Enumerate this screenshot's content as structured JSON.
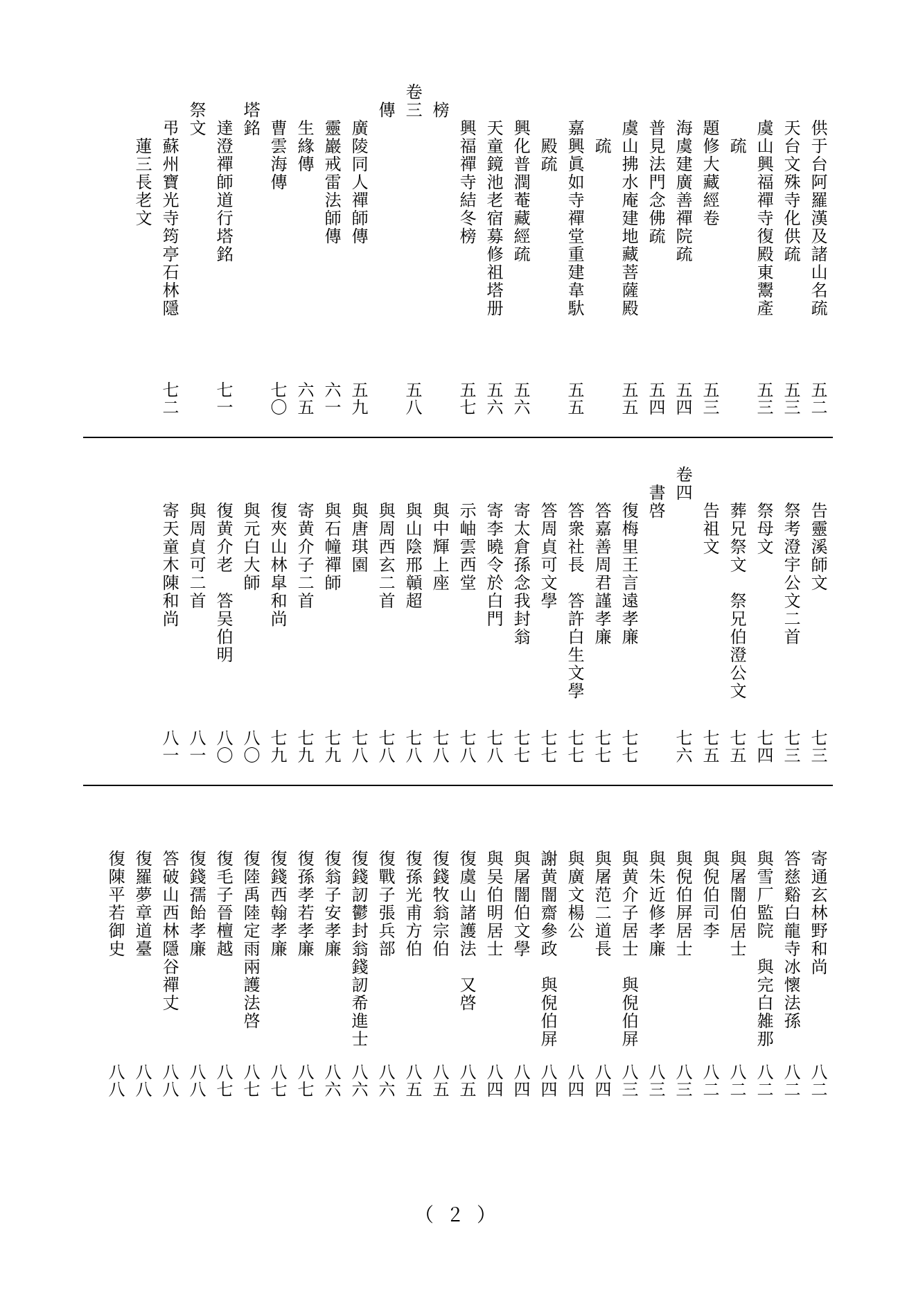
{
  "footer": "（ 2 ）",
  "rows": [
    [
      {
        "text": "供于台阿羅漢及諸山名疏",
        "indent": 2,
        "page": "五二"
      },
      {
        "text": "天台文殊寺化供疏",
        "indent": 2,
        "page": "五三"
      },
      {
        "text": "虞山興福禪寺復殿東鬻產",
        "indent": 2,
        "page": "五三"
      },
      {
        "text": "疏",
        "indent": 3,
        "page": ""
      },
      {
        "text": "題修大藏經卷",
        "indent": 2,
        "page": "五三"
      },
      {
        "text": "海虞建廣善禪院疏",
        "indent": 2,
        "page": "五四"
      },
      {
        "text": "普見法門念佛疏",
        "indent": 2,
        "page": "五四"
      },
      {
        "text": "虞山拂水庵建地藏菩薩殿",
        "indent": 2,
        "page": "五五"
      },
      {
        "text": "疏",
        "indent": 3,
        "page": ""
      },
      {
        "text": "嘉興眞如寺禪堂重建韋馱",
        "indent": 2,
        "page": "五五"
      },
      {
        "text": "殿疏",
        "indent": 3,
        "page": ""
      },
      {
        "text": "興化普潤菴藏經疏",
        "indent": 2,
        "page": "五六"
      },
      {
        "text": "天童鏡池老宿募修祖塔册",
        "indent": 2,
        "page": "五六"
      },
      {
        "text": "興福禪寺結冬榜",
        "indent": 2,
        "page": "五七"
      },
      {
        "text": "榜",
        "indent": 1,
        "page": ""
      },
      {
        "text": "卷三",
        "indent": 0,
        "page": "五八"
      },
      {
        "text": "傳",
        "indent": 1,
        "page": ""
      },
      {
        "text": "廣陵同人禪師傳",
        "indent": 2,
        "page": "五九"
      },
      {
        "text": "靈巖戒雷法師傳",
        "indent": 2,
        "page": "六一"
      },
      {
        "text": "生緣傳",
        "indent": 2,
        "page": "六五"
      },
      {
        "text": "曹雲海傳",
        "indent": 2,
        "page": "七〇"
      },
      {
        "text": "塔銘",
        "indent": 1,
        "page": ""
      },
      {
        "text": "達澄禪師道行塔銘",
        "indent": 2,
        "page": "七一"
      },
      {
        "text": "祭文",
        "indent": 1,
        "page": ""
      },
      {
        "text": "弔蘇州寶光寺筠亭石林隱",
        "indent": 2,
        "page": "七二"
      },
      {
        "text": "蓮三長老文",
        "indent": 3,
        "page": ""
      }
    ],
    [
      {
        "text": "告靈溪師文",
        "indent": 2,
        "page": "七三"
      },
      {
        "text": "祭考澄宇公文二首",
        "indent": 2,
        "page": "七三"
      },
      {
        "text": "祭母文",
        "indent": 2,
        "page": "七四"
      },
      {
        "text": "葬兄祭文　祭兄伯澄公文",
        "indent": 2,
        "page": "七五"
      },
      {
        "text": "告祖文",
        "indent": 2,
        "page": "七五"
      },
      {
        "text": "卷四",
        "indent": 0,
        "page": "七六"
      },
      {
        "text": "書啓",
        "indent": 1,
        "page": ""
      },
      {
        "text": "復梅里王言遠孝廉",
        "indent": 2,
        "page": "七七"
      },
      {
        "text": "答嘉善周君謹孝廉",
        "indent": 2,
        "page": "七七"
      },
      {
        "text": "答衆社長　答許白生文學",
        "indent": 2,
        "page": "七七"
      },
      {
        "text": "答周貞可文學",
        "indent": 2,
        "page": "七七"
      },
      {
        "text": "寄太倉孫念我封翁",
        "indent": 2,
        "page": "七七"
      },
      {
        "text": "寄李曉令於白門",
        "indent": 2,
        "page": "七八"
      },
      {
        "text": "示岫雲西堂",
        "indent": 2,
        "page": "七八"
      },
      {
        "text": "與中輝上座",
        "indent": 2,
        "page": "七八"
      },
      {
        "text": "與山陰邢贑超",
        "indent": 2,
        "page": "七八"
      },
      {
        "text": "與周西玄二首",
        "indent": 2,
        "page": "七八"
      },
      {
        "text": "與唐琪園",
        "indent": 2,
        "page": "七八"
      },
      {
        "text": "與石幢禪師",
        "indent": 2,
        "page": "七九"
      },
      {
        "text": "寄黄介子二首",
        "indent": 2,
        "page": "七九"
      },
      {
        "text": "復夾山林皐和尚",
        "indent": 2,
        "page": "七九"
      },
      {
        "text": "與元白大師",
        "indent": 2,
        "page": "八〇"
      },
      {
        "text": "復黄介老　答吴伯明",
        "indent": 2,
        "page": "八〇"
      },
      {
        "text": "與周貞可二首",
        "indent": 2,
        "page": "八一"
      },
      {
        "text": "寄天童木陳和尚",
        "indent": 2,
        "page": "八一"
      }
    ],
    [
      {
        "text": "寄通玄林野和尚",
        "indent": 2,
        "page": "八二"
      },
      {
        "text": "答慈谿白龍寺冰懷法孫",
        "indent": 2,
        "page": "八二"
      },
      {
        "text": "與雪厂監院　與完白雑那",
        "indent": 2,
        "page": "八二"
      },
      {
        "text": "與屠闇伯居士",
        "indent": 2,
        "page": "八二"
      },
      {
        "text": "與倪伯司李",
        "indent": 2,
        "page": "八二"
      },
      {
        "text": "與倪伯屏居士",
        "indent": 2,
        "page": "八三"
      },
      {
        "text": "與朱近修孝廉",
        "indent": 2,
        "page": "八三"
      },
      {
        "text": "與黄介子居士　與倪伯屏",
        "indent": 2,
        "page": "八三"
      },
      {
        "text": "與屠范二道長",
        "indent": 2,
        "page": "八四"
      },
      {
        "text": "與廣文楊公",
        "indent": 2,
        "page": "八四"
      },
      {
        "text": "謝黄闇齋參政　與倪伯屏",
        "indent": 2,
        "page": "八四"
      },
      {
        "text": "與屠闇伯文學",
        "indent": 2,
        "page": "八四"
      },
      {
        "text": "與吴伯明居士",
        "indent": 2,
        "page": "八四"
      },
      {
        "text": "復虞山諸護法　又啓",
        "indent": 2,
        "page": "八五"
      },
      {
        "text": "復錢牧翁宗伯",
        "indent": 2,
        "page": "八五"
      },
      {
        "text": "復孫光甫方伯",
        "indent": 2,
        "page": "八五"
      },
      {
        "text": "復戰子張兵部",
        "indent": 2,
        "page": "八六"
      },
      {
        "text": "復錢訒鬱封翁錢訒希進士",
        "indent": 2,
        "page": "八六"
      },
      {
        "text": "復翁子安孝廉",
        "indent": 2,
        "page": "八六"
      },
      {
        "text": "復孫孝若孝廉",
        "indent": 2,
        "page": "八七"
      },
      {
        "text": "復錢西翰孝廉",
        "indent": 2,
        "page": "八七"
      },
      {
        "text": "復陸禹陸定雨兩護法啓",
        "indent": 2,
        "page": "八七"
      },
      {
        "text": "復毛子晉檀越",
        "indent": 2,
        "page": "八七"
      },
      {
        "text": "復錢孺飴孝廉",
        "indent": 2,
        "page": "八八"
      },
      {
        "text": "答破山西林隱谷禪丈",
        "indent": 2,
        "page": "八八"
      },
      {
        "text": "復羅夢章道臺",
        "indent": 2,
        "page": "八八"
      },
      {
        "text": "復陳平若御史",
        "indent": 2,
        "page": "八八"
      }
    ]
  ]
}
